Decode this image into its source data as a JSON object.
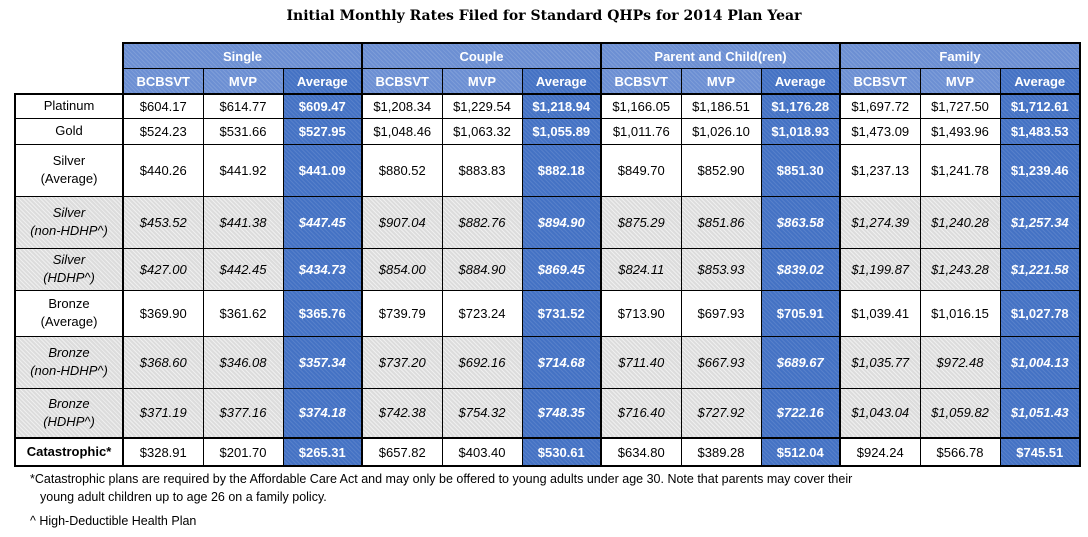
{
  "title": "Initial Monthly Rates Filed for Standard QHPs for 2014 Plan Year",
  "groups": [
    "Single",
    "Couple",
    "Parent and Child(ren)",
    "Family"
  ],
  "subheaders": [
    "BCBSVT",
    "MVP",
    "Average"
  ],
  "rows": [
    {
      "label": [
        "Platinum"
      ],
      "italic": false,
      "shaded": false,
      "bold": false,
      "values": [
        "$604.17",
        "$614.77",
        "$609.47",
        "$1,208.34",
        "$1,229.54",
        "$1,218.94",
        "$1,166.05",
        "$1,186.51",
        "$1,176.28",
        "$1,697.72",
        "$1,727.50",
        "$1,712.61"
      ]
    },
    {
      "label": [
        "Gold"
      ],
      "italic": false,
      "shaded": false,
      "bold": false,
      "values": [
        "$524.23",
        "$531.66",
        "$527.95",
        "$1,048.46",
        "$1,063.32",
        "$1,055.89",
        "$1,011.76",
        "$1,026.10",
        "$1,018.93",
        "$1,473.09",
        "$1,493.96",
        "$1,483.53"
      ]
    },
    {
      "label": [
        "Silver",
        "(Average)"
      ],
      "italic": false,
      "shaded": false,
      "bold": false,
      "values": [
        "$440.26",
        "$441.92",
        "$441.09",
        "$880.52",
        "$883.83",
        "$882.18",
        "$849.70",
        "$852.90",
        "$851.30",
        "$1,237.13",
        "$1,241.78",
        "$1,239.46"
      ]
    },
    {
      "label": [
        "Silver",
        "(non-HDHP^)"
      ],
      "italic": true,
      "shaded": true,
      "bold": false,
      "values": [
        "$453.52",
        "$441.38",
        "$447.45",
        "$907.04",
        "$882.76",
        "$894.90",
        "$875.29",
        "$851.86",
        "$863.58",
        "$1,274.39",
        "$1,240.28",
        "$1,257.34"
      ]
    },
    {
      "label": [
        "Silver",
        "(HDHP^)"
      ],
      "italic": true,
      "shaded": true,
      "bold": false,
      "values": [
        "$427.00",
        "$442.45",
        "$434.73",
        "$854.00",
        "$884.90",
        "$869.45",
        "$824.11",
        "$853.93",
        "$839.02",
        "$1,199.87",
        "$1,243.28",
        "$1,221.58"
      ]
    },
    {
      "label": [
        "Bronze",
        "(Average)"
      ],
      "italic": false,
      "shaded": false,
      "bold": false,
      "values": [
        "$369.90",
        "$361.62",
        "$365.76",
        "$739.79",
        "$723.24",
        "$731.52",
        "$713.90",
        "$697.93",
        "$705.91",
        "$1,039.41",
        "$1,016.15",
        "$1,027.78"
      ]
    },
    {
      "label": [
        "Bronze",
        "(non-HDHP^)"
      ],
      "italic": true,
      "shaded": true,
      "bold": false,
      "values": [
        "$368.60",
        "$346.08",
        "$357.34",
        "$737.20",
        "$692.16",
        "$714.68",
        "$711.40",
        "$667.93",
        "$689.67",
        "$1,035.77",
        "$972.48",
        "$1,004.13"
      ]
    },
    {
      "label": [
        "Bronze",
        "(HDHP^)"
      ],
      "italic": true,
      "shaded": true,
      "bold": false,
      "values": [
        "$371.19",
        "$377.16",
        "$374.18",
        "$742.38",
        "$754.32",
        "$748.35",
        "$716.40",
        "$727.92",
        "$722.16",
        "$1,043.04",
        "$1,059.82",
        "$1,051.43"
      ]
    },
    {
      "label": [
        "Catastrophic*"
      ],
      "italic": false,
      "shaded": false,
      "bold": true,
      "values": [
        "$328.91",
        "$201.70",
        "$265.31",
        "$657.82",
        "$403.40",
        "$530.61",
        "$634.80",
        "$389.28",
        "$512.04",
        "$924.24",
        "$566.78",
        "$745.51"
      ]
    }
  ],
  "footnotes": {
    "catastrophic_line1": "*Catastrophic plans are required by the Affordable Care Act and may only be offered to young adults under age 30.  Note that parents may cover their",
    "catastrophic_line2": "young adult children up to age 26 on a family policy.",
    "hdhp": "^ High-Deductible Health Plan"
  },
  "colors": {
    "header_blue": "#4472c4",
    "average_blue": "#4472c4",
    "shaded_gray": "#dcdcdc"
  }
}
